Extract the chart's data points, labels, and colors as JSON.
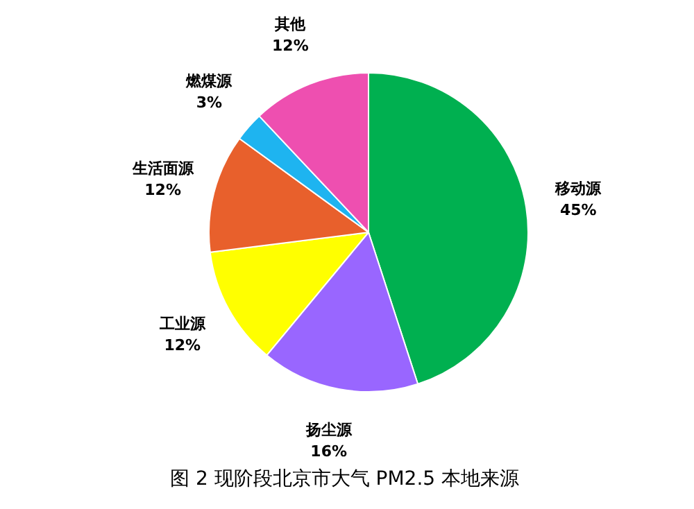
{
  "chart_data": {
    "type": "pie",
    "title": "图 2  现阶段北京市大气 PM2.5 本地来源",
    "categories": [
      "移动源",
      "扬尘源",
      "工业源",
      "生活面源",
      "燃煤源",
      "其他"
    ],
    "values": [
      45,
      16,
      12,
      12,
      3,
      12
    ],
    "value_labels": [
      "45%",
      "16%",
      "12%",
      "12%",
      "3%",
      "12%"
    ],
    "colors": [
      "#00b050",
      "#9966ff",
      "#ffff00",
      "#e8602c",
      "#1eb4f0",
      "#ee4fb0"
    ]
  }
}
